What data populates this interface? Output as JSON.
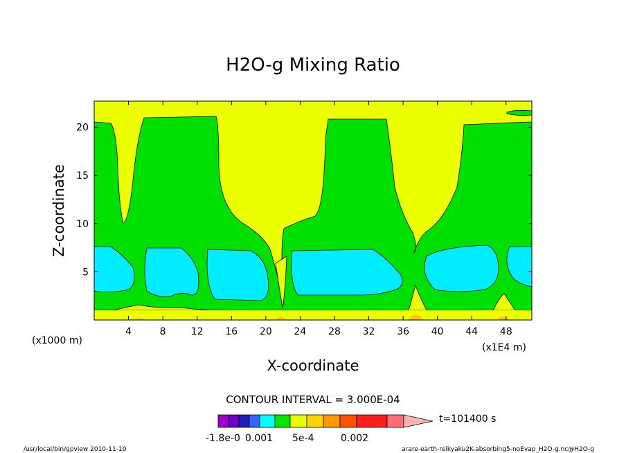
{
  "chart_data": {
    "type": "heatmap",
    "title": "H2O-g Mixing Ratio",
    "xlabel": "X-coordinate",
    "ylabel": "Z-coordinate",
    "x_unit_left": "(x1000 m)",
    "x_unit_right": "(x1E4 m)",
    "x_ticks": [
      "4",
      "8",
      "12",
      "16",
      "20",
      "24",
      "28",
      "32",
      "36",
      "40",
      "44",
      "48"
    ],
    "y_ticks": [
      "5",
      "10",
      "15",
      "20"
    ],
    "xlim": [
      0,
      51
    ],
    "ylim": [
      0,
      22.7
    ],
    "contour_interval": "CONTOUR INTERVAL = 3.000E-04",
    "time_label": "t=101400 s",
    "colorbar_labels": [
      "-1.8e-0",
      "0.001",
      "5e-4",
      "0.002"
    ],
    "colorbar_colors": [
      "#a000c8",
      "#6e00c8",
      "#1e1eb4",
      "#3264ff",
      "#00ffff",
      "#00e600",
      "#e6ff00",
      "#ffd200",
      "#ff9600",
      "#ff5000",
      "#ff1e1e",
      "#ff6e78",
      "#ffb4b4"
    ],
    "regions": [
      {
        "name": "low-yellow",
        "color": "#ecff00"
      },
      {
        "name": "mid-green",
        "color": "#00e000"
      },
      {
        "name": "cyan-core",
        "color": "#00ecff"
      },
      {
        "name": "surface-orange",
        "color": "#ffc800"
      }
    ],
    "footer_left": "/usr/local/bin/gpview   2010-11-10",
    "footer_right": "arare-earth-reikyaku2K-absorbing5-noEvap_H2O-g.nc@H2O-g"
  }
}
